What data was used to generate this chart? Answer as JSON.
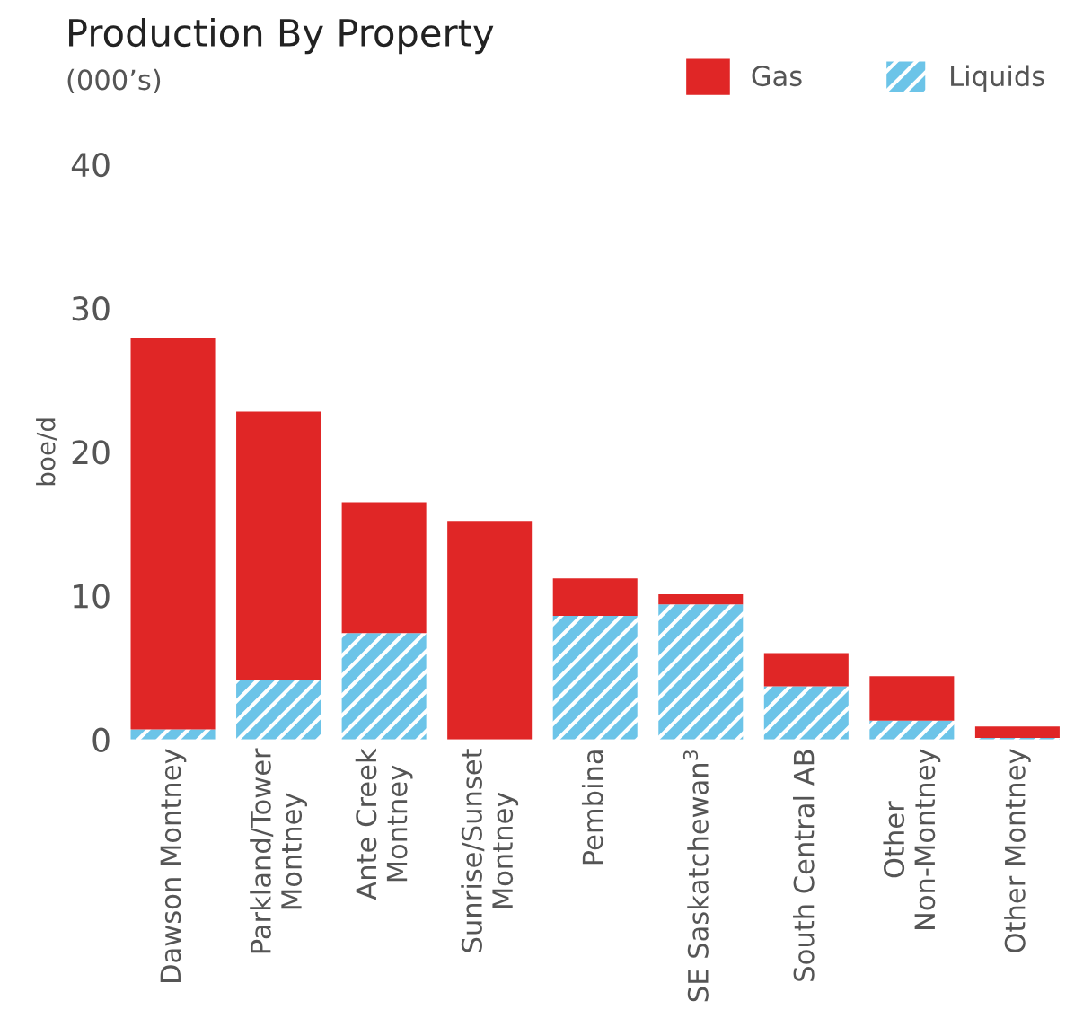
{
  "chart_data": {
    "type": "bar",
    "stacked": true,
    "title": "Production By Property",
    "subtitle": "(000’s)",
    "ylabel": "boe/d",
    "categories": [
      "Dawson Montney",
      "Parkland/Tower\nMontney",
      "Ante Creek\nMontney",
      "Sunrise/Sunset\nMontney",
      "Pembina",
      "SE Saskatchewan$^{3}$",
      "South Central AB",
      "Other\nNon-Montney",
      "Other Montney"
    ],
    "series": [
      {
        "name": "Liquids",
        "color": "#6cc4e8",
        "values": [
          0.7,
          4.1,
          7.4,
          0.0,
          8.6,
          9.4,
          3.7,
          1.3,
          0.1
        ]
      },
      {
        "name": "Gas",
        "color": "#e02626",
        "values": [
          27.2,
          18.7,
          9.1,
          15.2,
          2.6,
          0.7,
          2.3,
          3.1,
          0.8
        ]
      }
    ],
    "ylim": [
      0,
      40
    ],
    "yticks": [
      0,
      10,
      20,
      30,
      40
    ],
    "grid": false,
    "legend": "top right"
  }
}
